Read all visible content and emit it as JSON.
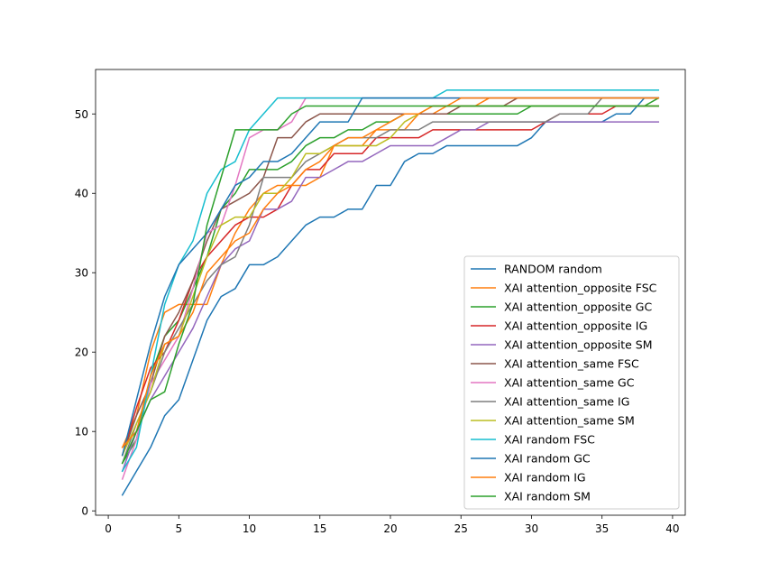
{
  "chart_data": {
    "type": "line",
    "title": "",
    "xlabel": "",
    "ylabel": "",
    "xlim": [
      -0.9,
      40.9
    ],
    "ylim": [
      -0.55,
      55.6
    ],
    "grid": false,
    "legend_position": "lower-right",
    "x_ticks": [
      0,
      5,
      10,
      15,
      20,
      25,
      30,
      35,
      40
    ],
    "y_ticks": [
      0,
      10,
      20,
      30,
      40,
      50
    ],
    "x": [
      1,
      2,
      3,
      4,
      5,
      6,
      7,
      8,
      9,
      10,
      11,
      12,
      13,
      14,
      15,
      16,
      17,
      18,
      19,
      20,
      21,
      22,
      23,
      24,
      25,
      26,
      27,
      28,
      29,
      30,
      31,
      32,
      33,
      34,
      35,
      36,
      37,
      38,
      39
    ],
    "series": [
      {
        "name": "RANDOM random",
        "color": "#1f77b4",
        "values": [
          2,
          5,
          8,
          12,
          14,
          19,
          24,
          27,
          28,
          31,
          31,
          32,
          34,
          36,
          37,
          37,
          38,
          38,
          41,
          41,
          44,
          45,
          45,
          46,
          46,
          46,
          46,
          46,
          46,
          47,
          49,
          49,
          49,
          49,
          49,
          50,
          50,
          52,
          52
        ]
      },
      {
        "name": "XAI attention_opposite FSC",
        "color": "#ff7f0e",
        "values": [
          8,
          12,
          20,
          25,
          26,
          26,
          26,
          31,
          35,
          38,
          40,
          41,
          41,
          41,
          42,
          46,
          46,
          46,
          48,
          48,
          48,
          50,
          50,
          51,
          51,
          51,
          52,
          52,
          52,
          52,
          52,
          52,
          52,
          52,
          52,
          52,
          52,
          52,
          52
        ]
      },
      {
        "name": "XAI attention_opposite GC",
        "color": "#2ca02c",
        "values": [
          6,
          9,
          17,
          22,
          24,
          28,
          32,
          38,
          40,
          43,
          43,
          43,
          44,
          46,
          47,
          47,
          48,
          48,
          49,
          49,
          50,
          50,
          50,
          50,
          50,
          50,
          50,
          50,
          50,
          51,
          51,
          51,
          51,
          51,
          51,
          51,
          51,
          51,
          52
        ]
      },
      {
        "name": "XAI attention_opposite IG",
        "color": "#d62728",
        "values": [
          7,
          13,
          18,
          20,
          24,
          29,
          32,
          34,
          36,
          37,
          37,
          38,
          41,
          43,
          43,
          45,
          45,
          45,
          47,
          47,
          47,
          47,
          48,
          48,
          48,
          48,
          48,
          48,
          48,
          48,
          49,
          50,
          50,
          50,
          50,
          51,
          51,
          51,
          51
        ]
      },
      {
        "name": "XAI attention_opposite SM",
        "color": "#9467bd",
        "values": [
          5,
          10,
          14,
          17,
          20,
          23,
          27,
          31,
          33,
          34,
          38,
          38,
          39,
          42,
          42,
          43,
          44,
          44,
          45,
          46,
          46,
          46,
          46,
          47,
          48,
          48,
          49,
          49,
          49,
          49,
          49,
          49,
          49,
          49,
          49,
          49,
          49,
          49,
          49
        ]
      },
      {
        "name": "XAI attention_same FSC",
        "color": "#8c564b",
        "values": [
          7,
          12,
          16,
          22,
          25,
          29,
          34,
          38,
          39,
          40,
          42,
          47,
          47,
          49,
          50,
          50,
          50,
          50,
          50,
          50,
          50,
          50,
          50,
          50,
          51,
          51,
          51,
          51,
          52,
          52,
          52,
          52,
          52,
          52,
          52,
          52,
          52,
          52,
          52
        ]
      },
      {
        "name": "XAI attention_same GC",
        "color": "#e377c2",
        "values": [
          4,
          9,
          16,
          19,
          22,
          28,
          35,
          36,
          41,
          47,
          48,
          48,
          49,
          52,
          52,
          52,
          52,
          52,
          52,
          52,
          52,
          52,
          52,
          52,
          52,
          52,
          52,
          52,
          52,
          52,
          52,
          52,
          52,
          52,
          52,
          52,
          52,
          52,
          52
        ]
      },
      {
        "name": "XAI attention_same IG",
        "color": "#7f7f7f",
        "values": [
          6,
          11,
          15,
          20,
          23,
          26,
          29,
          31,
          32,
          36,
          42,
          42,
          42,
          44,
          45,
          46,
          47,
          47,
          47,
          48,
          48,
          48,
          49,
          49,
          49,
          49,
          49,
          49,
          49,
          49,
          49,
          50,
          50,
          50,
          52,
          52,
          52,
          52,
          52
        ]
      },
      {
        "name": "XAI attention_same SM",
        "color": "#bcbd22",
        "values": [
          7,
          11,
          15,
          21,
          22,
          27,
          32,
          36,
          37,
          37,
          40,
          40,
          42,
          45,
          45,
          46,
          46,
          46,
          46,
          47,
          49,
          50,
          51,
          51,
          51,
          51,
          51,
          51,
          51,
          51,
          51,
          51,
          51,
          51,
          51,
          51,
          51,
          51,
          51
        ]
      },
      {
        "name": "XAI random FSC",
        "color": "#17becf",
        "values": [
          5,
          8,
          17,
          26,
          31,
          34,
          40,
          43,
          44,
          48,
          50,
          52,
          52,
          52,
          52,
          52,
          52,
          52,
          52,
          52,
          52,
          52,
          52,
          53,
          53,
          53,
          53,
          53,
          53,
          53,
          53,
          53,
          53,
          53,
          53,
          53,
          53,
          53,
          53
        ]
      },
      {
        "name": "XAI random GC",
        "color": "#1f77b4",
        "values": [
          7,
          14,
          21,
          27,
          31,
          33,
          35,
          38,
          41,
          42,
          44,
          44,
          45,
          47,
          49,
          49,
          49,
          52,
          52,
          52,
          52,
          52,
          52,
          52,
          52,
          52,
          52,
          52,
          52,
          52,
          52,
          52,
          52,
          52,
          52,
          52,
          52,
          52,
          52
        ]
      },
      {
        "name": "XAI random IG",
        "color": "#ff7f0e",
        "values": [
          8,
          10,
          17,
          21,
          22,
          25,
          30,
          32,
          34,
          35,
          38,
          40,
          41,
          43,
          44,
          46,
          47,
          47,
          48,
          49,
          50,
          50,
          51,
          51,
          52,
          52,
          52,
          52,
          52,
          52,
          52,
          52,
          52,
          52,
          52,
          52,
          52,
          52,
          52
        ]
      },
      {
        "name": "XAI random SM",
        "color": "#2ca02c",
        "values": [
          6,
          10,
          14,
          15,
          21,
          26,
          36,
          42,
          48,
          48,
          48,
          48,
          50,
          51,
          51,
          51,
          51,
          51,
          51,
          51,
          51,
          51,
          51,
          51,
          51,
          51,
          51,
          51,
          51,
          51,
          51,
          51,
          51,
          51,
          51,
          51,
          51,
          51,
          51
        ]
      }
    ]
  }
}
